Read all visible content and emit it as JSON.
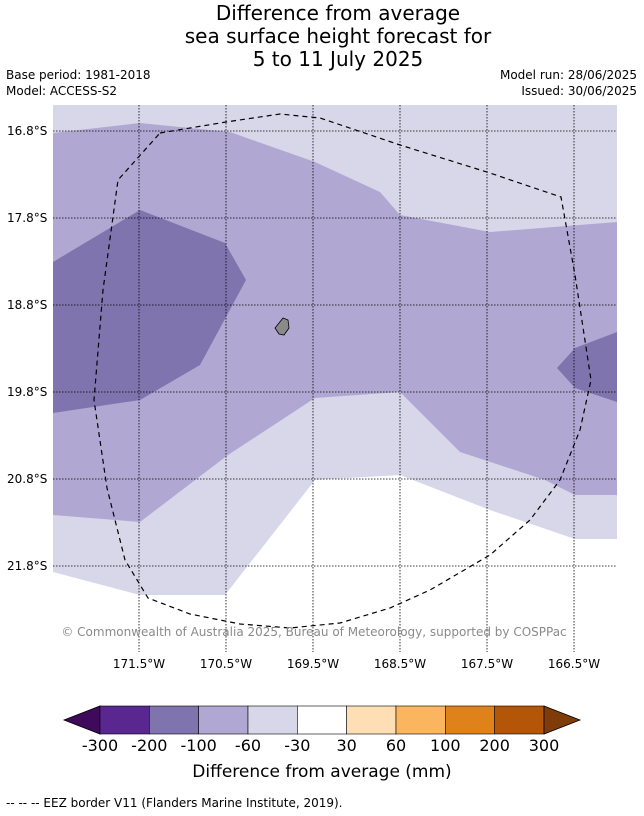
{
  "title": {
    "line1": "Difference from average",
    "line2": "sea surface height forecast for",
    "line3": "5 to 11 July 2025"
  },
  "meta": {
    "base_period": "Base period: 1981-2018",
    "model": "Model: ACCESS-S2",
    "model_run": "Model run: 28/06/2025",
    "issued": "Issued: 30/06/2025"
  },
  "map": {
    "lat_labels": [
      "16.8°S",
      "17.8°S",
      "18.8°S",
      "19.8°S",
      "20.8°S",
      "21.8°S"
    ],
    "lon_labels": [
      "171.5°W",
      "170.5°W",
      "169.5°W",
      "168.5°W",
      "167.5°W",
      "166.5°W"
    ],
    "credit": "© Commonwealth of Australia 2025, Bureau of Meteorology, supported by COSPPac",
    "colors": {
      "minus_100_to_minus_60": "#b0a8d2",
      "minus_200_to_minus_100": "#8074ae",
      "minus_60_to_minus_30": "#d8d7e9",
      "minus_30_to_30": "#ffffff",
      "land": "#8a8a8a"
    }
  },
  "colorbar": {
    "ticks": [
      "-300",
      "-200",
      "-100",
      "-60",
      "-30",
      "30",
      "60",
      "100",
      "200",
      "300"
    ],
    "colors": [
      "#3f0a5c",
      "#5a2690",
      "#8074ae",
      "#b0a8d2",
      "#d8d7e9",
      "#ffffff",
      "#fedfb5",
      "#fbb55f",
      "#e0821a",
      "#b35607",
      "#7f3b08"
    ],
    "label": "Difference from average (mm)"
  },
  "footnote": "--  --  -- EEZ border V11 (Flanders Marine Institute, 2019)."
}
